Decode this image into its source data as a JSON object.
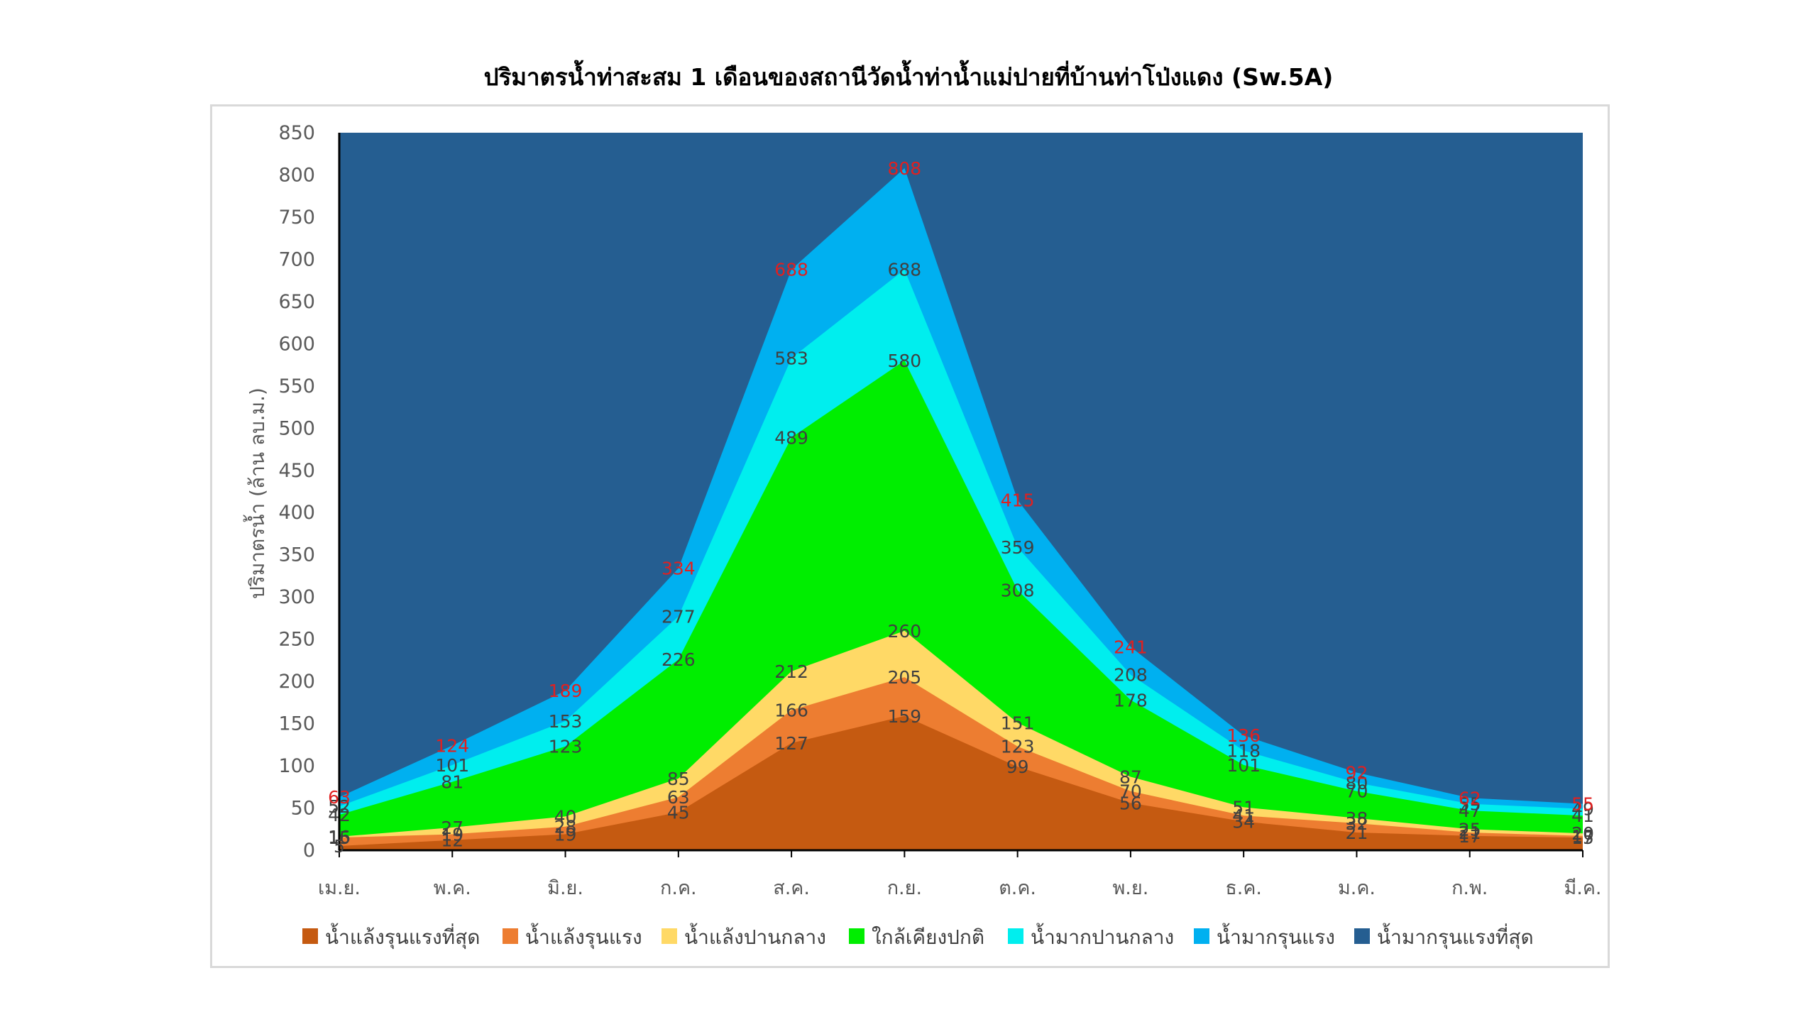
{
  "chart_data": {
    "type": "area",
    "title": "ปริมาตรน้ำท่าสะสม 1 เดือนของสถานีวัดน้ำท่าน้ำแม่ปายที่บ้านท่าโป่งแดง (Sw.5A)",
    "xlabel": "",
    "ylabel": "ปริมาตรน้ำ (ล้าน ลบ.ม.)",
    "ylim": [
      0,
      850
    ],
    "yticks": [
      "0",
      "50",
      "100",
      "150",
      "200",
      "250",
      "300",
      "350",
      "400",
      "450",
      "500",
      "550",
      "600",
      "650",
      "700",
      "750",
      "800",
      "850"
    ],
    "categories": [
      "เม.ย.",
      "พ.ค.",
      "มิ.ย.",
      "ก.ค.",
      "ส.ค.",
      "ก.ย.",
      "ต.ค.",
      "พ.ย.",
      "ธ.ค.",
      "ม.ค.",
      "ก.พ.",
      "มี.ค."
    ],
    "legend_position": "bottom",
    "boundaries": [
      {
        "values": [
          5,
          12,
          19,
          45,
          127,
          159,
          99,
          56,
          34,
          21,
          17,
          15
        ]
      },
      {
        "values": [
          15,
          19,
          28,
          63,
          166,
          205,
          123,
          70,
          41,
          32,
          21,
          17
        ]
      },
      {
        "values": [
          16,
          27,
          40,
          85,
          212,
          260,
          151,
          87,
          51,
          38,
          25,
          20
        ]
      },
      {
        "values": [
          42,
          81,
          123,
          226,
          489,
          580,
          308,
          178,
          101,
          70,
          47,
          41
        ]
      },
      {
        "values": [
          52,
          101,
          153,
          277,
          583,
          688,
          359,
          208,
          118,
          80,
          55,
          49
        ]
      },
      {
        "values": [
          63,
          124,
          189,
          334,
          688,
          808,
          415,
          241,
          136,
          92,
          62,
          55
        ]
      }
    ],
    "series": [
      {
        "name": "น้ำแล้งรุนแรงที่สุด",
        "color": "#c55a11"
      },
      {
        "name": "น้ำแล้งรุนแรง",
        "color": "#ed7d31"
      },
      {
        "name": "น้ำแล้งปานกลาง",
        "color": "#ffd966"
      },
      {
        "name": "ใกล้เคียงปกติ",
        "color": "#00ee00"
      },
      {
        "name": "น้ำมากปานกลาง",
        "color": "#00eeee"
      },
      {
        "name": "น้ำมากรุนแรง",
        "color": "#00b0f0"
      },
      {
        "name": "น้ำมากรุนแรงที่สุด",
        "color": "#255e91"
      }
    ]
  }
}
